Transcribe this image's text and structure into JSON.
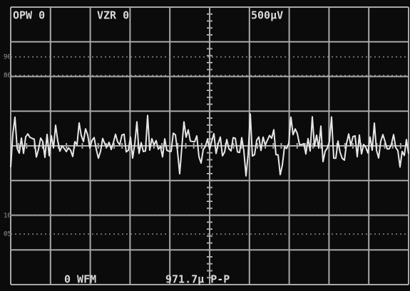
{
  "readouts": {
    "top": [
      "OPW 0",
      "VZR 0",
      "500µV"
    ],
    "bottom": [
      "0 WFM",
      "971.7µ P-P"
    ]
  },
  "graticule_marks": [
    "90",
    "80",
    "10",
    "05"
  ]
}
